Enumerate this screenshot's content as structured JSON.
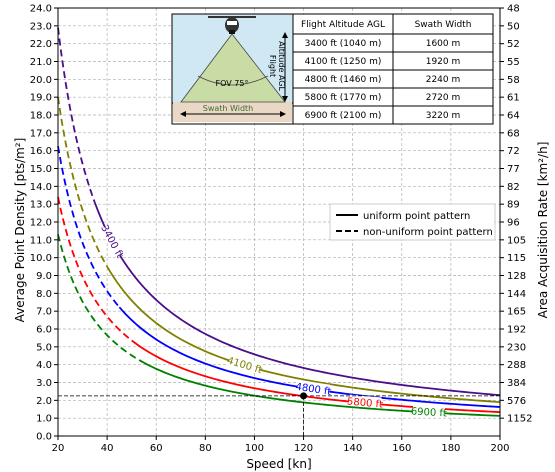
{
  "chart_data": {
    "type": "line",
    "xlabel": "Speed [kn]",
    "ylabel": "Average Point Density [pts/m²]",
    "y2label": "Area Acquisition Rate [km²/h]",
    "xlim": [
      20,
      200
    ],
    "ylim": [
      0,
      24
    ],
    "grid": true,
    "x_ticks": [
      "20",
      "40",
      "60",
      "80",
      "100",
      "120",
      "140",
      "160",
      "180",
      "200"
    ],
    "y_ticks": [
      "0.0",
      "1.0",
      "2.0",
      "3.0",
      "4.0",
      "5.0",
      "6.0",
      "7.0",
      "8.0",
      "9.0",
      "10.0",
      "11.0",
      "12.0",
      "13.0",
      "14.0",
      "15.0",
      "16.0",
      "17.0",
      "18.0",
      "19.0",
      "20.0",
      "21.0",
      "22.0",
      "23.0",
      "24.0"
    ],
    "y2_ticks": [
      "1152",
      "576",
      "384",
      "288",
      "230",
      "192",
      "165",
      "144",
      "128",
      "115",
      "105",
      "96",
      "89",
      "82",
      "77",
      "72",
      "68",
      "64",
      "61",
      "58",
      "55",
      "52",
      "50",
      "48"
    ],
    "legend": {
      "placement": "right",
      "entries": [
        {
          "label": "uniform point pattern",
          "style": "solid"
        },
        {
          "label": "non-uniform point pattern",
          "style": "dashed"
        }
      ]
    },
    "series": [
      {
        "name": "3400 ft",
        "color": "#4b0d8a",
        "k": 458,
        "solid_from_x": 35,
        "label_x": 42
      },
      {
        "name": "4100 ft",
        "color": "#808000",
        "k": 380,
        "solid_from_x": 40,
        "label_x": 96
      },
      {
        "name": "4800 ft",
        "color": "#0000ff",
        "k": 325,
        "solid_from_x": 45,
        "label_x": 124
      },
      {
        "name": "5800 ft",
        "color": "#ff0000",
        "k": 268,
        "solid_from_x": 50,
        "label_x": 145
      },
      {
        "name": "6900 ft",
        "color": "#008000",
        "k": 226,
        "solid_from_x": 55,
        "label_x": 171
      }
    ],
    "annotation": {
      "marker_x": 120,
      "marker_y": 2.25
    }
  },
  "inset": {
    "fov_label": "FOV 75°",
    "swath_label": "Swath Width",
    "altitude_label_line1": "Flight",
    "altitude_label_line2": "Altitude AGL",
    "colors": {
      "sky": "#cfe8f3",
      "ground": "#ead7c5",
      "cone": "#c9dca5"
    }
  },
  "table": {
    "headers": [
      "Flight Altitude AGL",
      "Swath Width"
    ],
    "rows": [
      [
        "3400 ft (1040 m)",
        "1600 m"
      ],
      [
        "4100 ft (1250 m)",
        "1920 m"
      ],
      [
        "4800 ft (1460 m)",
        "2240 m"
      ],
      [
        "5800 ft (1770 m)",
        "2720 m"
      ],
      [
        "6900 ft (2100 m)",
        "3220 m"
      ]
    ]
  }
}
